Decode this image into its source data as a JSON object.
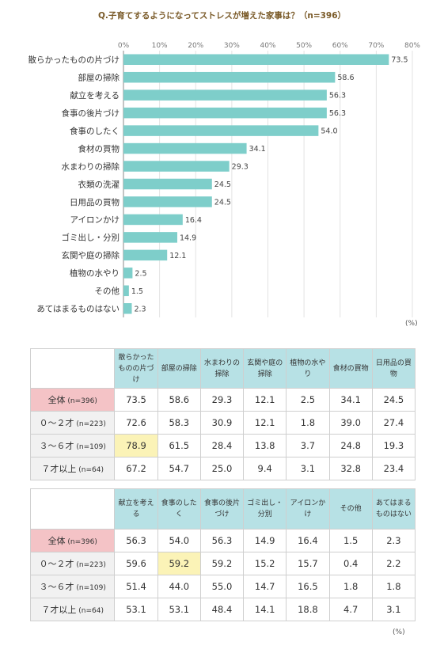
{
  "title": "Q.子育てするようになってストレスが増えた家事は？（n=396）",
  "unit": "(%)",
  "chart_data": {
    "type": "bar",
    "orientation": "horizontal",
    "categories": [
      "散らかったものの片づけ",
      "部屋の掃除",
      "献立を考える",
      "食事の後片づけ",
      "食事のしたく",
      "食材の買物",
      "水まわりの掃除",
      "衣類の洗濯",
      "日用品の買物",
      "アイロンかけ",
      "ゴミ出し・分別",
      "玄関や庭の掃除",
      "植物の水やり",
      "その他",
      "あてはまるものはない"
    ],
    "values": [
      73.5,
      58.6,
      56.3,
      56.3,
      54.0,
      34.1,
      29.3,
      24.5,
      24.5,
      16.4,
      14.9,
      12.1,
      2.5,
      1.5,
      2.3
    ],
    "value_labels": [
      "73.5",
      "58.6",
      "56.3",
      "56.3",
      "54.0",
      "34.1",
      "29.3",
      "24.5",
      "24.5",
      "16.4",
      "14.9",
      "12.1",
      "2.5",
      "1.5",
      "2.3"
    ],
    "xlim": [
      0,
      80
    ],
    "xticks": [
      "0%",
      "10%",
      "20%",
      "30%",
      "40%",
      "50%",
      "60%",
      "70%",
      "80%"
    ],
    "grid": true,
    "bar_color": "#7ececa"
  },
  "tables": [
    {
      "headers": [
        "散らかったものの片づけ",
        "部屋の掃除",
        "水まわりの掃除",
        "玄関や庭の掃除",
        "植物の水やり",
        "食材の買物",
        "日用品の買物"
      ],
      "rows": [
        {
          "label": "全体",
          "n": "(n=396)",
          "total": true,
          "values": [
            "73.5",
            "58.6",
            "29.3",
            "12.1",
            "2.5",
            "34.1",
            "24.5"
          ],
          "highlight": []
        },
        {
          "label": "０～２才",
          "n": "(n=223)",
          "total": false,
          "values": [
            "72.6",
            "58.3",
            "30.9",
            "12.1",
            "1.8",
            "39.0",
            "27.4"
          ],
          "highlight": []
        },
        {
          "label": "３～６才",
          "n": "(n=109)",
          "total": false,
          "values": [
            "78.9",
            "61.5",
            "28.4",
            "13.8",
            "3.7",
            "24.8",
            "19.3"
          ],
          "highlight": [
            0
          ]
        },
        {
          "label": "７才以上",
          "n": "(n=64)",
          "total": false,
          "values": [
            "67.2",
            "54.7",
            "25.0",
            "9.4",
            "3.1",
            "32.8",
            "23.4"
          ],
          "highlight": []
        }
      ]
    },
    {
      "headers": [
        "献立を考える",
        "食事のしたく",
        "食事の後片づけ",
        "ゴミ出し・分別",
        "アイロンかけ",
        "その他",
        "あてはまるものはない"
      ],
      "rows": [
        {
          "label": "全体",
          "n": "(n=396)",
          "total": true,
          "values": [
            "56.3",
            "54.0",
            "56.3",
            "14.9",
            "16.4",
            "1.5",
            "2.3"
          ],
          "highlight": []
        },
        {
          "label": "０～２才",
          "n": "(n=223)",
          "total": false,
          "values": [
            "59.6",
            "59.2",
            "59.2",
            "15.2",
            "15.7",
            "0.4",
            "2.2"
          ],
          "highlight": [
            1
          ]
        },
        {
          "label": "３～６才",
          "n": "(n=109)",
          "total": false,
          "values": [
            "51.4",
            "44.0",
            "55.0",
            "14.7",
            "16.5",
            "1.8",
            "1.8"
          ],
          "highlight": []
        },
        {
          "label": "７才以上",
          "n": "(n=64)",
          "total": false,
          "values": [
            "53.1",
            "53.1",
            "48.4",
            "14.1",
            "18.8",
            "4.7",
            "3.1"
          ],
          "highlight": []
        }
      ]
    }
  ]
}
